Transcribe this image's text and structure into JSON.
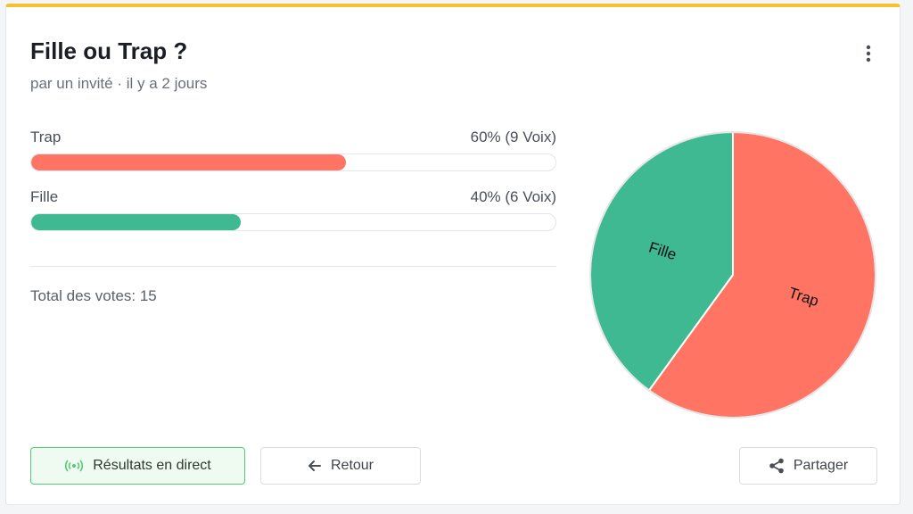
{
  "poll": {
    "title": "Fille ou Trap ?",
    "subtitle": "par un invité · il y a 2 jours",
    "total_label": "Total des votes: 15"
  },
  "options": [
    {
      "label": "Trap",
      "result": "60% (9 Voix)",
      "percent": 60,
      "color": "#ff7463"
    },
    {
      "label": "Fille",
      "result": "40% (6 Voix)",
      "percent": 40,
      "color": "#3fb991"
    }
  ],
  "chart_data": {
    "type": "pie",
    "categories": [
      "Trap",
      "Fille"
    ],
    "values": [
      9,
      6
    ],
    "colors": [
      "#ff7463",
      "#3fb991"
    ]
  },
  "buttons": {
    "live": "Résultats en direct",
    "back": "Retour",
    "share": "Partager"
  },
  "icons": {
    "more": "more-vertical-icon",
    "live": "broadcast-icon",
    "back": "arrow-left-icon",
    "share": "share-icon"
  },
  "colors": {
    "accent_top": "#f7c12d",
    "live_border": "#55c97a"
  }
}
